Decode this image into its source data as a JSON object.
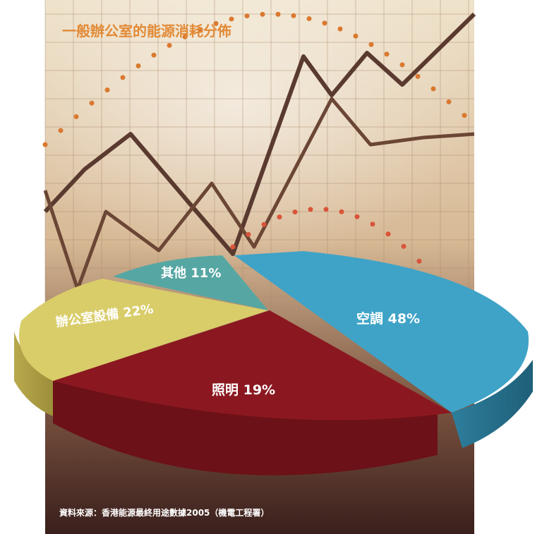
{
  "chart_data": {
    "type": "pie",
    "title": "一般辦公室的能源消耗分佈",
    "slices": [
      {
        "name": "空調",
        "label": "空調 48%",
        "value": 48,
        "color": "#3fa3c7"
      },
      {
        "name": "照明",
        "label": "照明 19%",
        "value": 19,
        "color": "#8b1820"
      },
      {
        "name": "辦公室設備",
        "label": "辦公室設備 22%",
        "value": 22,
        "color": "#d9cd6a"
      },
      {
        "name": "其他",
        "label": "其他 11%",
        "value": 11,
        "color": "#56a7a3"
      }
    ],
    "source": "資料來源：香港能源最終用途數據2005（機電工程署）"
  }
}
